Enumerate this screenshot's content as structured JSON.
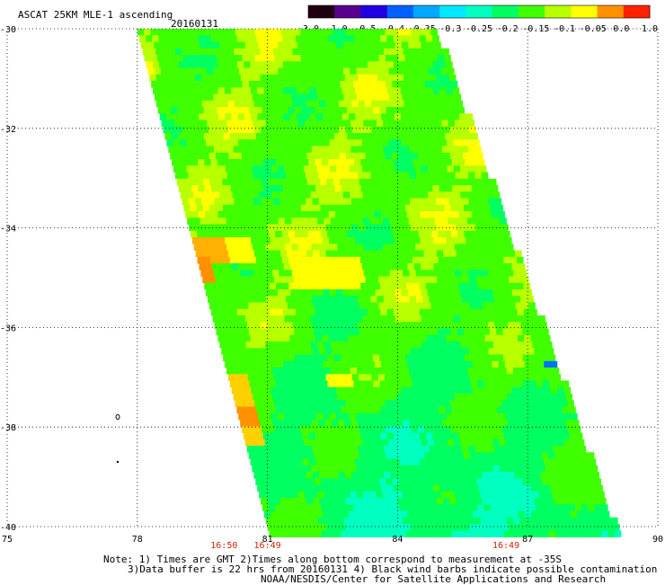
{
  "header": {
    "title": "ASCAT 25KM MLE-1 ascending",
    "date": "20160131"
  },
  "colorbar": {
    "ticks": [
      "-3.0",
      "-1.0",
      "-0.5",
      "-0.4",
      "-0.35",
      "-0.3",
      "-0.25",
      "-0.2",
      "-0.15",
      "-0.1",
      "-0.05",
      "0.0",
      "1.0"
    ],
    "colors": [
      "#200010",
      "#5a0090",
      "#2000e0",
      "#0060ff",
      "#00a8ff",
      "#00e8ff",
      "#00ffc0",
      "#00ff60",
      "#40ff00",
      "#b8ff00",
      "#ffff00",
      "#ff9000",
      "#ff2000"
    ]
  },
  "map": {
    "lat_labels": [
      "-30",
      "-32",
      "-34",
      "-36",
      "-38",
      "-40"
    ],
    "lon_labels": [
      "75",
      "78",
      "81",
      "84",
      "87",
      "90"
    ],
    "lat_range": [
      -30,
      -40
    ],
    "lon_range": [
      75,
      90
    ],
    "time_labels": [
      {
        "text": "16:50",
        "lon": 80.0
      },
      {
        "text": "16:49",
        "lon": 81.0
      },
      {
        "text": "16:49",
        "lon": 86.5
      }
    ]
  },
  "footer": {
    "line1": "Note: 1) Times are GMT 2)Times along bottom correspond to measurement at -35S",
    "line2": "3)Data buffer is 22 hrs from 20160131 4) Black wind barbs indicate possible contamination",
    "line3": "NOAA/NESDIS/Center for Satellite Applications and Research"
  }
}
